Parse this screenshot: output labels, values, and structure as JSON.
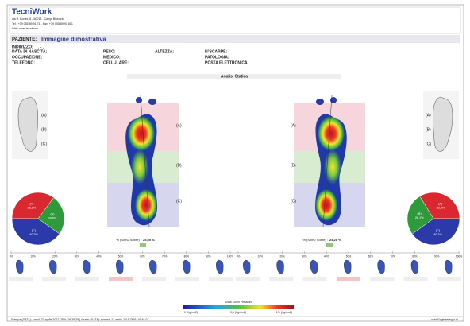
{
  "header": {
    "company": "TecniWork",
    "address": "via R. Bonini, 8 - 50013 - Campi Bisenzio",
    "tel": "Tel.: +39 055 89 91 71 - Fax: +39 055 89 91 801",
    "web": "Web: www.tecniwork"
  },
  "patient": {
    "label": "PAZIENTE:",
    "name": "Immagine dimostrativa",
    "address_label": "INDIRIZZO:",
    "address": ", - ,",
    "fields": [
      "DATA DI NASCITA:",
      "PESO:",
      "ALTEZZA:",
      "N°SCARPE:",
      "OCCUPAZIONE:",
      "MEDICO:",
      "",
      "PATOLOGIA:",
      "TELEFONO:",
      "CELLULARE:",
      "",
      "POSTA ELETTRONICA:"
    ]
  },
  "section_title": "Analisi Statica",
  "zones": [
    "(A)",
    "(B)",
    "(C)"
  ],
  "left": {
    "surface_label": "% (Scm2 Sobre) :",
    "surface_value": "25,55 %",
    "pie": [
      {
        "label": "(A)",
        "value": 35.2,
        "value_label": "35,2%",
        "color": "#d9282f"
      },
      {
        "label": "(B)",
        "value": 24.6,
        "value_label": "24,6%",
        "color": "#2f9a3a"
      },
      {
        "label": "(C)",
        "value": 40.2,
        "value_label": "40,2%",
        "color": "#2b3aa8"
      }
    ]
  },
  "right": {
    "surface_label": "% (Scm2 Sobre) :",
    "surface_value": "24,28 %",
    "pie": [
      {
        "label": "(A)",
        "value": 33.8,
        "value_label": "33,8%",
        "color": "#d9282f"
      },
      {
        "label": "(B)",
        "value": 26.1,
        "value_label": "26,1%",
        "color": "#2f9a3a"
      },
      {
        "label": "(C)",
        "value": 40.1,
        "value_label": "40,1%",
        "color": "#2b3aa8"
      }
    ]
  },
  "timeline": {
    "ticks": [
      "0%",
      "10%",
      "20%",
      "30%",
      "40%",
      "50%",
      "60%",
      "70%",
      "80%",
      "90%",
      "100%"
    ]
  },
  "scale": {
    "title": "Scala Colori Pressioni",
    "labels": [
      "0 (Kg/cm2)",
      "0,5 (Kg/cm2)",
      "1% (Kg/cm2)"
    ]
  },
  "footer": {
    "print": "Stampa (DATA): lunedì 23 aprile 2012  ORA: 16.38.28  |  Analisi (DATA): martedì 12 aprile 2011  ORA: 16.48.07",
    "company": "Loran Engineering s.r.l."
  }
}
